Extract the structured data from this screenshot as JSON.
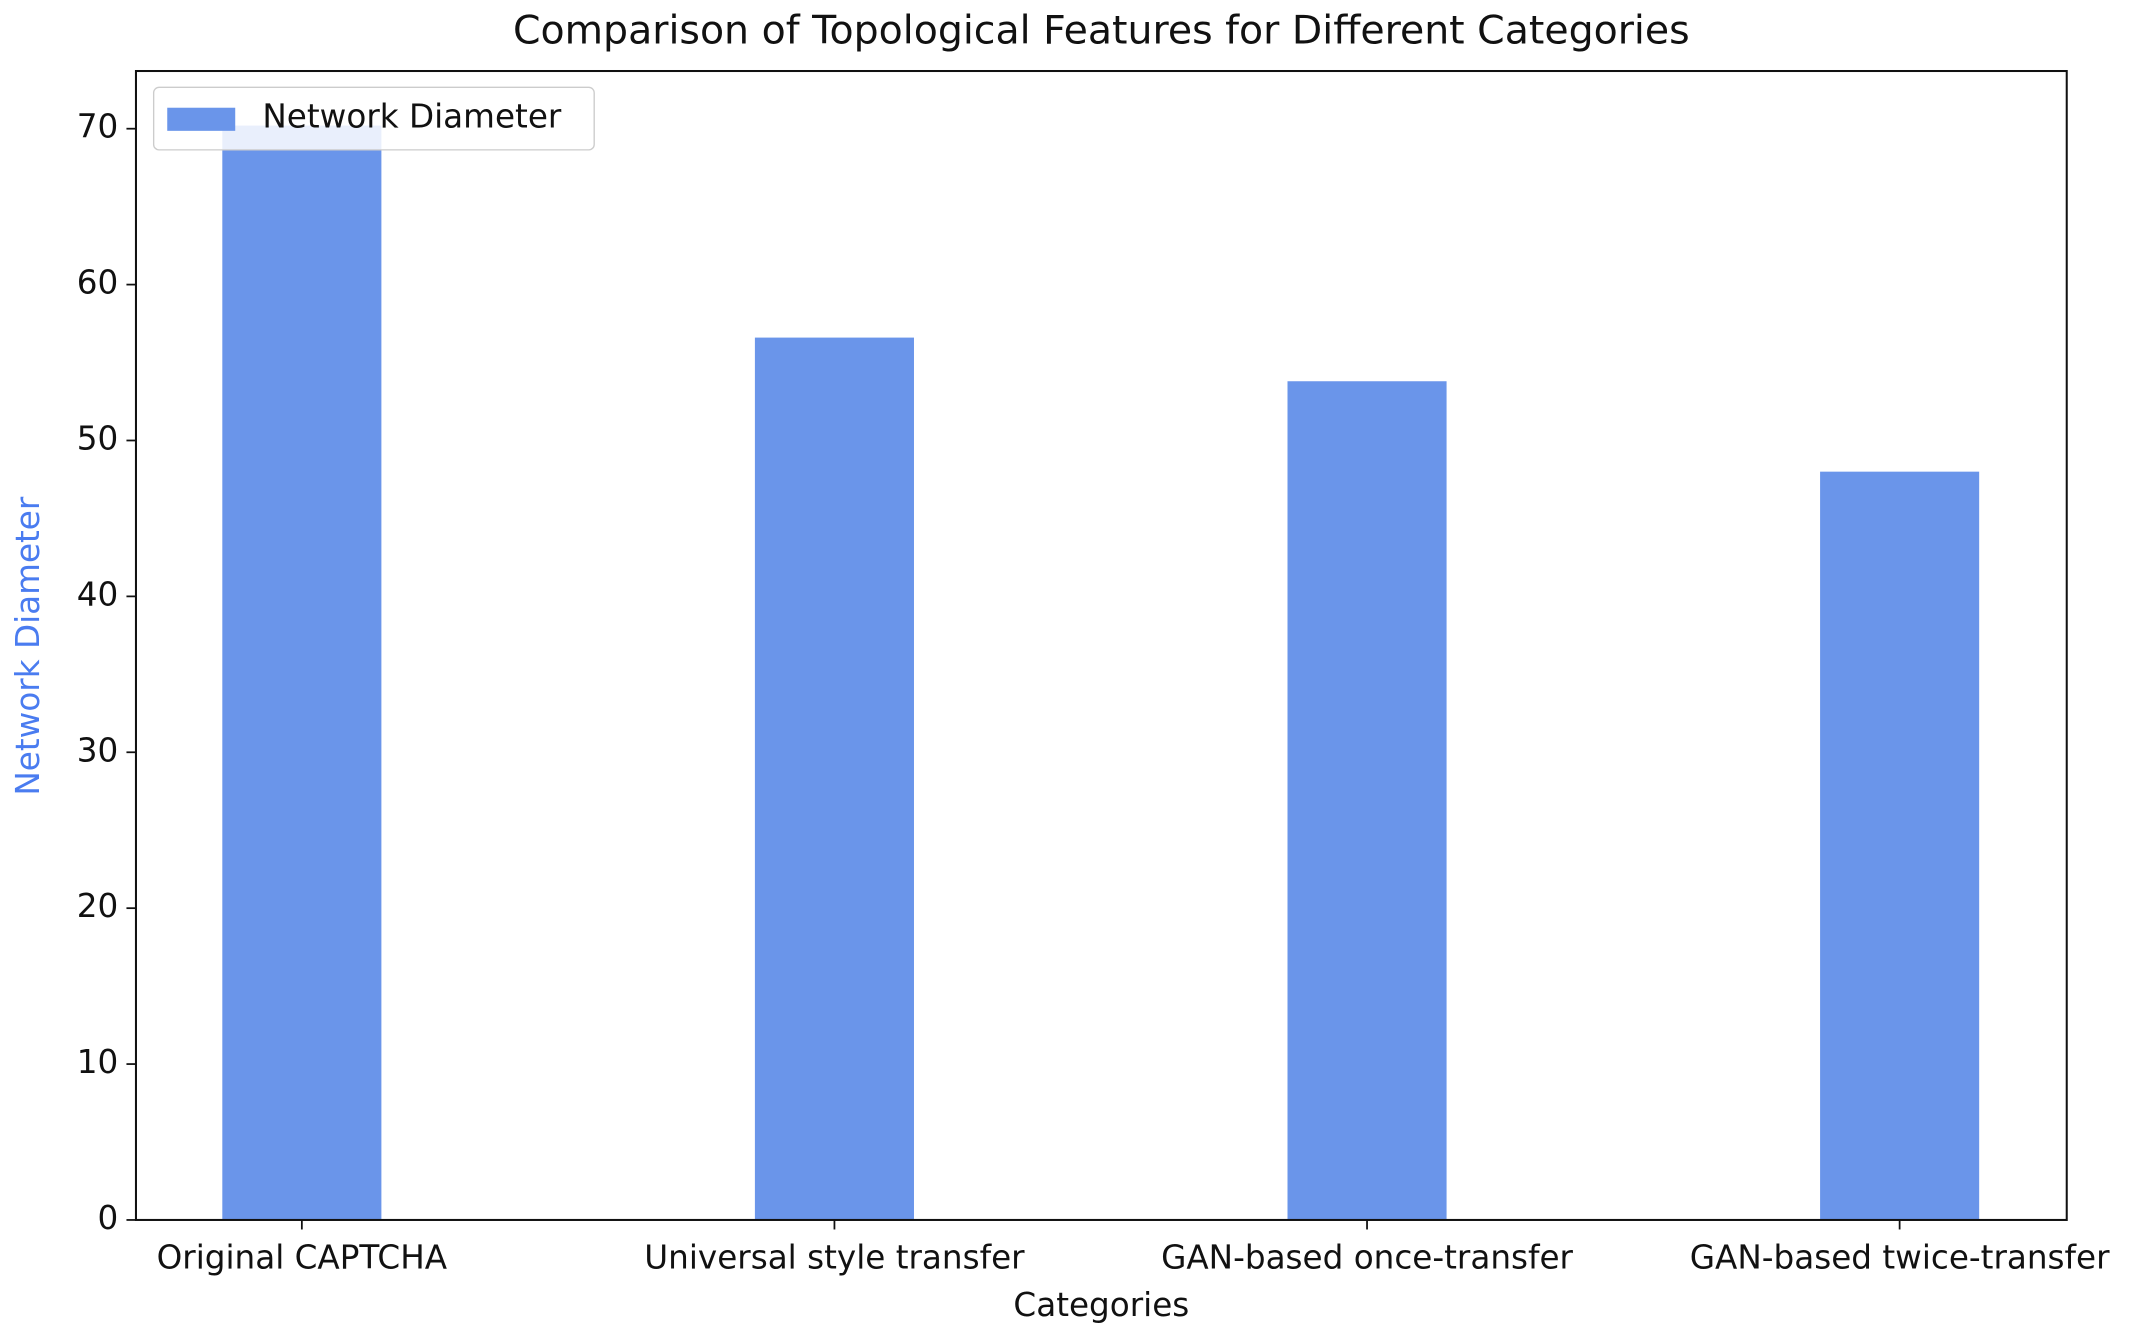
{
  "chart_data": {
    "type": "bar",
    "title": "Comparison of Topological Features for Different Categories",
    "x_label": "Categories",
    "y_label": "Network Diameter",
    "y_label_color": "#4a7cf0",
    "categories": [
      "Original CAPTCHA",
      "Universal style transfer",
      "GAN-based once-transfer",
      "GAN-based twice-transfer"
    ],
    "series": [
      {
        "name": "Network Diameter",
        "color": "#6a95ea",
        "values": [
          70.2,
          56.6,
          53.8,
          48.0
        ]
      }
    ],
    "ylim": [
      0,
      73.7
    ],
    "yticks": [
      0,
      10,
      20,
      30,
      40,
      50,
      60,
      70
    ],
    "legend": "upper-left",
    "grid": false
  }
}
